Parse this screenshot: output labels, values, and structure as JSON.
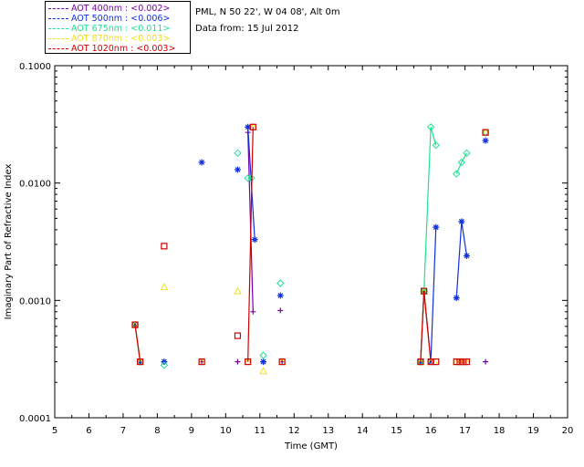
{
  "header": {
    "site_line": "PML, N 50 22', W 04 08', Alt 0m",
    "date_line": "Data from: 15 Jul 2012"
  },
  "legend": [
    {
      "label": "AOT  400nm : <0.002>",
      "color": "#7a00a8"
    },
    {
      "label": "AOT  500nm : <0.006>",
      "color": "#1030e0"
    },
    {
      "label": "AOT  675nm : <0.011>",
      "color": "#20e090"
    },
    {
      "label": "AOT  870nm : <0.003>",
      "color": "#f0e020"
    },
    {
      "label": "AOT 1020nm : <0.003>",
      "color": "#d00000"
    }
  ],
  "chart_data": {
    "type": "scatter",
    "xlabel": "Time (GMT)",
    "ylabel": "Imaginary Part of Refractive Index",
    "xlim": [
      5,
      20
    ],
    "ylim": [
      0.0001,
      0.1
    ],
    "yscale": "log",
    "x_ticks": [
      "5",
      "6",
      "7",
      "8",
      "9",
      "10",
      "11",
      "12",
      "13",
      "14",
      "15",
      "16",
      "17",
      "18",
      "19",
      "20"
    ],
    "y_ticks": [
      "0.0001",
      "0.0010",
      "0.0100",
      "0.1000"
    ],
    "series": [
      {
        "name": "AOT  400nm : <0.002>",
        "color": "#7a00a8",
        "marker": "plus",
        "points": [
          [
            7.35,
            0.00062
          ],
          [
            7.5,
            0.0003
          ],
          [
            8.2,
            0.0003
          ],
          [
            9.3,
            0.0003
          ],
          [
            10.35,
            0.0003
          ],
          [
            10.65,
            0.027
          ],
          [
            10.8,
            0.0008
          ],
          [
            11.1,
            0.0003
          ],
          [
            11.6,
            0.00082
          ],
          [
            11.65,
            0.0003
          ],
          [
            15.7,
            0.0003
          ],
          [
            15.8,
            0.0012
          ],
          [
            16.0,
            0.0003
          ],
          [
            17.6,
            0.0003
          ]
        ],
        "segments": [
          [
            0,
            1
          ],
          [
            5,
            6
          ],
          [
            10,
            11
          ],
          [
            11,
            12
          ]
        ]
      },
      {
        "name": "AOT  500nm : <0.006>",
        "color": "#1030e0",
        "marker": "asterisk",
        "points": [
          [
            7.35,
            0.00062
          ],
          [
            7.5,
            0.0003
          ],
          [
            8.2,
            0.0003
          ],
          [
            9.3,
            0.015
          ],
          [
            10.35,
            0.013
          ],
          [
            10.65,
            0.03
          ],
          [
            10.85,
            0.0033
          ],
          [
            11.1,
            0.0003
          ],
          [
            11.6,
            0.0011
          ],
          [
            15.7,
            0.0003
          ],
          [
            15.8,
            0.0012
          ],
          [
            16.0,
            0.0003
          ],
          [
            16.15,
            0.0042
          ],
          [
            16.75,
            0.00105
          ],
          [
            16.9,
            0.0047
          ],
          [
            17.05,
            0.0024
          ],
          [
            17.6,
            0.023
          ]
        ],
        "segments": [
          [
            0,
            1
          ],
          [
            5,
            6
          ],
          [
            9,
            10
          ],
          [
            10,
            11
          ],
          [
            11,
            12
          ],
          [
            13,
            14
          ],
          [
            14,
            15
          ]
        ]
      },
      {
        "name": "AOT  675nm : <0.011>",
        "color": "#20e090",
        "marker": "diamond",
        "points": [
          [
            7.35,
            0.00062
          ],
          [
            7.5,
            0.0003
          ],
          [
            8.2,
            0.00028
          ],
          [
            10.35,
            0.018
          ],
          [
            10.65,
            0.011
          ],
          [
            10.75,
            0.011
          ],
          [
            11.1,
            0.00034
          ],
          [
            11.6,
            0.0014
          ],
          [
            15.7,
            0.0003
          ],
          [
            15.8,
            0.0012
          ],
          [
            16.0,
            0.03
          ],
          [
            16.15,
            0.021
          ],
          [
            16.75,
            0.012
          ],
          [
            16.9,
            0.015
          ],
          [
            17.05,
            0.018
          ],
          [
            17.6,
            0.027
          ]
        ],
        "segments": [
          [
            0,
            1
          ],
          [
            4,
            5
          ],
          [
            8,
            9
          ],
          [
            9,
            10
          ],
          [
            10,
            11
          ],
          [
            12,
            13
          ],
          [
            13,
            14
          ]
        ]
      },
      {
        "name": "AOT  870nm : <0.003>",
        "color": "#f0e020",
        "marker": "triangle",
        "points": [
          [
            7.35,
            0.00062
          ],
          [
            7.5,
            0.0003
          ],
          [
            8.2,
            0.0013
          ],
          [
            9.3,
            0.0003
          ],
          [
            10.35,
            0.0012
          ],
          [
            10.65,
            0.0003
          ],
          [
            10.8,
            0.03
          ],
          [
            11.1,
            0.00025
          ],
          [
            11.65,
            0.0003
          ],
          [
            15.7,
            0.0003
          ],
          [
            15.8,
            0.0012
          ],
          [
            16.0,
            0.0003
          ],
          [
            16.1,
            0.0003
          ],
          [
            16.75,
            0.0003
          ],
          [
            16.85,
            0.0003
          ],
          [
            16.95,
            0.0003
          ],
          [
            17.05,
            0.0003
          ],
          [
            17.6,
            0.027
          ]
        ],
        "segments": [
          [
            0,
            1
          ],
          [
            9,
            10
          ],
          [
            10,
            11
          ]
        ]
      },
      {
        "name": "AOT 1020nm : <0.003>",
        "color": "#d00000",
        "marker": "square",
        "points": [
          [
            7.35,
            0.00062
          ],
          [
            7.5,
            0.0003
          ],
          [
            8.2,
            0.0029
          ],
          [
            9.3,
            0.0003
          ],
          [
            10.35,
            0.0005
          ],
          [
            10.65,
            0.0003
          ],
          [
            10.8,
            0.03
          ],
          [
            11.65,
            0.0003
          ],
          [
            15.7,
            0.0003
          ],
          [
            15.8,
            0.0012
          ],
          [
            16.0,
            0.0003
          ],
          [
            16.15,
            0.0003
          ],
          [
            16.75,
            0.0003
          ],
          [
            16.85,
            0.0003
          ],
          [
            16.95,
            0.0003
          ],
          [
            17.05,
            0.0003
          ],
          [
            17.6,
            0.027
          ]
        ],
        "segments": [
          [
            0,
            1
          ],
          [
            5,
            6
          ],
          [
            8,
            9
          ],
          [
            9,
            10
          ]
        ]
      }
    ]
  }
}
